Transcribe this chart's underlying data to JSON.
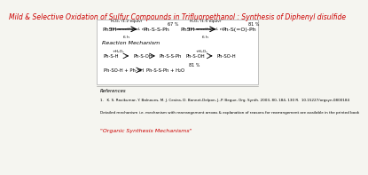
{
  "title": "Mild & Selective Oxidation of Sulfur Compounds in Trifluoroethanol : Synthesis of Diphenyl disulfide",
  "title_color": "#cc0000",
  "title_fontsize": 5.5,
  "bg_color": "#f5f5f0",
  "reaction_section_label": "Reaction Mechanism",
  "references_label": "References",
  "reference_text": "1.   K. S. Ravikumar, Y. Balnaves, M. J. Cestra, D. Bonnet-Delpon, J.-P. Begue, Org. Synth. 2003, 80, 184, 130 R.  10.15227/orgsyn.0800184",
  "detailed_mech_text": "Detailed mechanism i.e. mechanism with rearrangement arrows & explanation of reasons for rearrangement are available in the printed book",
  "orgsyn_label": "\"Organic Synthesis Mechanisms\"",
  "orgsyn_color": "#cc0000",
  "line_color": "#333333",
  "scheme_bg": "#ffffff"
}
